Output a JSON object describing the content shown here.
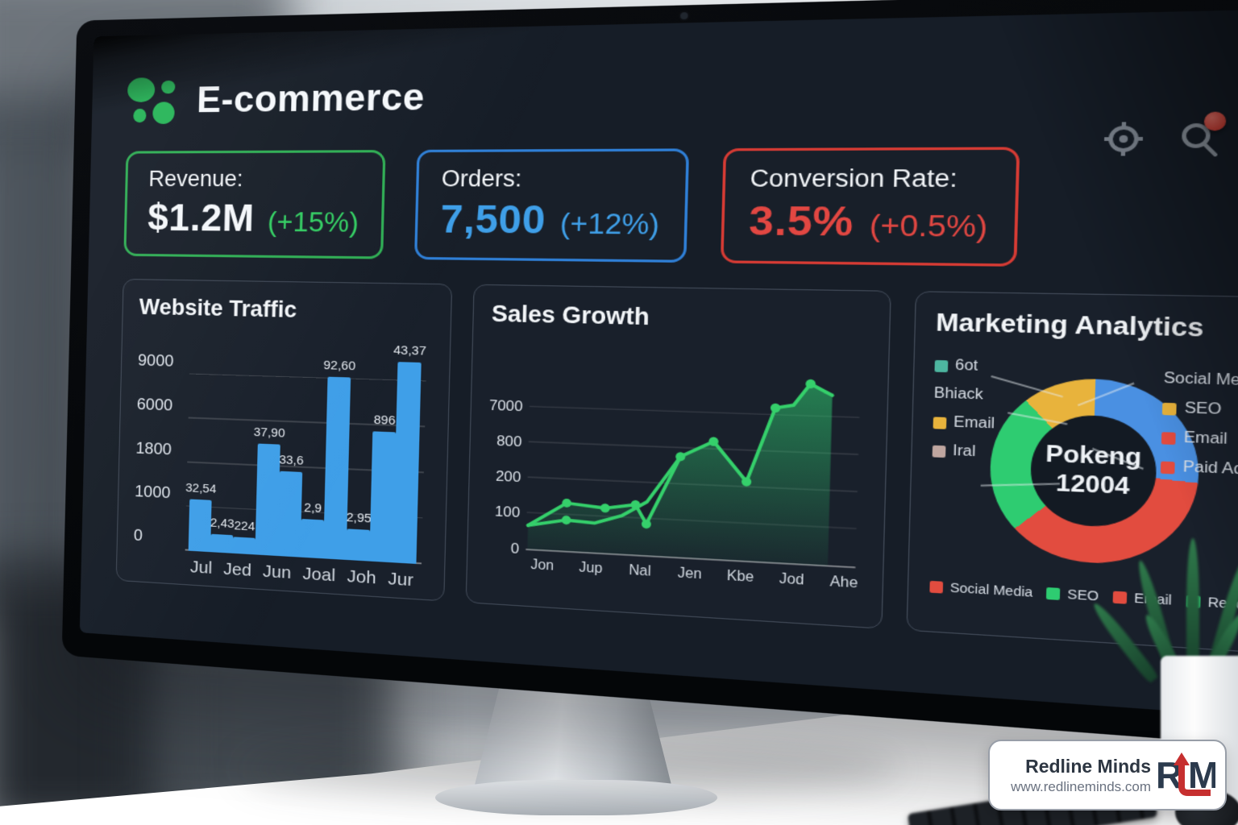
{
  "app": {
    "title": "E-commerce"
  },
  "kpis": [
    {
      "label": "Revenue:",
      "value": "$1.2M",
      "delta": "(+15%)",
      "border": "#2fae54",
      "value_color": "#f4f7fa",
      "delta_color": "#33cf63"
    },
    {
      "label": "Orders:",
      "value": "7,500",
      "delta": "(+12%)",
      "border": "#2f7fd6",
      "value_color": "#3f9fe8",
      "delta_color": "#3f9fe8"
    },
    {
      "label": "Conversion Rate:",
      "value": "3.5%",
      "delta": "(+0.5%)",
      "border": "#d63b34",
      "value_color": "#e24742",
      "delta_color": "#e24742"
    }
  ],
  "chart_data": [
    {
      "type": "bar",
      "title": "Website Traffic",
      "bar_color": "#3f9fe8",
      "y_ticks": [
        {
          "label": "9000",
          "pct": 88
        },
        {
          "label": "6000",
          "pct": 66
        },
        {
          "label": "1800",
          "pct": 44
        },
        {
          "label": "1000",
          "pct": 22
        },
        {
          "label": "0",
          "pct": 0
        }
      ],
      "categories": [
        "Jul",
        "Jed",
        "Jun",
        "Joal",
        "Joh",
        "Jur"
      ],
      "bars": [
        {
          "label": "32,54",
          "pct": 26
        },
        {
          "label": "2,43",
          "pct": 9
        },
        {
          "label": "224",
          "pct": 8
        },
        {
          "label": "37,90",
          "pct": 55
        },
        {
          "label": "33,6",
          "pct": 42
        },
        {
          "label": "2,9",
          "pct": 19
        },
        {
          "label": "92,60",
          "pct": 89
        },
        {
          "label": "2,95",
          "pct": 15
        },
        {
          "label": "896",
          "pct": 63
        },
        {
          "label": "43,37",
          "pct": 97
        }
      ]
    },
    {
      "type": "line",
      "title": "Sales Growth",
      "line_color": "#35d06b",
      "y_ticks": [
        {
          "label": "7000",
          "y": 60
        },
        {
          "label": "800",
          "y": 104
        },
        {
          "label": "200",
          "y": 148
        },
        {
          "label": "100",
          "y": 192
        },
        {
          "label": "0",
          "y": 238
        }
      ],
      "categories": [
        "Jon",
        "Jup",
        "Nal",
        "Jen",
        "Kbe",
        "Jod",
        "Ahe"
      ],
      "series": [
        {
          "name": "main",
          "area": true,
          "points": [
            [
              50,
              208
            ],
            [
              95,
              178
            ],
            [
              140,
              182
            ],
            [
              175,
              176
            ],
            [
              188,
              199
            ],
            [
              225,
              115
            ],
            [
              262,
              95
            ],
            [
              300,
              142
            ],
            [
              330,
              52
            ],
            [
              350,
              48
            ],
            [
              368,
              22
            ],
            [
              392,
              35
            ]
          ],
          "markers": [
            [
              95,
              178
            ],
            [
              140,
              182
            ],
            [
              175,
              176
            ],
            [
              188,
              199
            ],
            [
              225,
              115
            ],
            [
              262,
              95
            ],
            [
              300,
              142
            ],
            [
              330,
              52
            ],
            [
              368,
              22
            ]
          ]
        },
        {
          "name": "secondary",
          "area": false,
          "points": [
            [
              50,
              208
            ],
            [
              95,
              199
            ],
            [
              128,
              201
            ],
            [
              160,
              190
            ],
            [
              188,
              172
            ],
            [
              225,
              115
            ]
          ],
          "markers": [
            [
              95,
              199
            ]
          ]
        }
      ]
    },
    {
      "type": "pie",
      "title": "Marketing Analytics",
      "center_title": "Pokeng",
      "center_value": "12004",
      "segments": [
        {
          "label": "Social Media",
          "color": "#4a90e2",
          "from": 0,
          "to": 95
        },
        {
          "label": "Paid Ads",
          "color": "#e24c3f",
          "from": 95,
          "to": 228
        },
        {
          "label": "SEO",
          "color": "#2ecc71",
          "from": 228,
          "to": 318
        },
        {
          "label": "Email",
          "color": "#e8b33c",
          "from": 318,
          "to": 360
        }
      ],
      "legend_left": [
        {
          "color": "#4db6a0",
          "label": "6ot"
        },
        {
          "color": null,
          "label": "Bhiack"
        },
        {
          "color": "#e8b33c",
          "label": "Email"
        },
        {
          "color": "#bfa6a0",
          "label": "Iral"
        }
      ],
      "legend_right": [
        {
          "color": null,
          "label": "Social Media"
        },
        {
          "color": "#e8b33c",
          "label": "SEO"
        },
        {
          "color": "#e24c3f",
          "label": "Email"
        },
        {
          "color": "#e24c3f",
          "label": "Paid Ads"
        }
      ],
      "legend_bottom": [
        {
          "color": "#e24c3f",
          "label": "Social Media"
        },
        {
          "color": "#2ecc71",
          "label": "SEO"
        },
        {
          "color": "#e24c3f",
          "label": "Email"
        },
        {
          "color": "#2ecc71",
          "label": "Reoola"
        }
      ]
    }
  ],
  "watermark": {
    "name": "Redline Minds",
    "url": "www.redlineminds.com",
    "logo_r": "R",
    "logo_m": "M"
  }
}
